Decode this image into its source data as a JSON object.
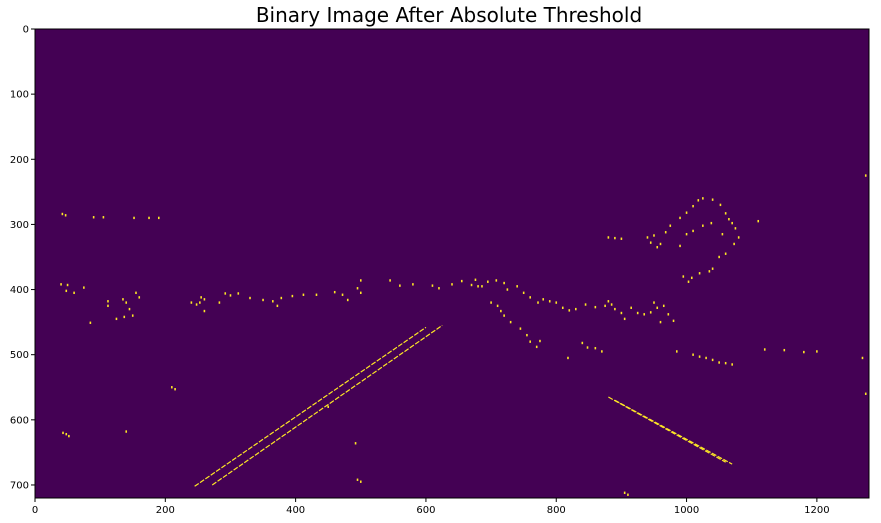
{
  "chart_data": {
    "type": "heatmap",
    "title": "Binary Image After Absolute Threshold",
    "xlabel": "",
    "ylabel": "",
    "xlim": [
      0,
      1280
    ],
    "ylim": [
      720,
      0
    ],
    "x_ticks": [
      0,
      200,
      400,
      600,
      800,
      1000,
      1200
    ],
    "y_ticks": [
      0,
      100,
      200,
      300,
      400,
      500,
      600,
      700
    ],
    "colors": {
      "background": "#440154",
      "foreground": "#fde725"
    },
    "lines": [
      {
        "x1": 245,
        "y1": 702,
        "x2": 600,
        "y2": 458
      },
      {
        "x1": 272,
        "y1": 700,
        "x2": 625,
        "y2": 455
      },
      {
        "x1": 880,
        "y1": 565,
        "x2": 1060,
        "y2": 665
      },
      {
        "x1": 890,
        "y1": 570,
        "x2": 1070,
        "y2": 668
      }
    ],
    "speckles": [
      [
        42,
        284
      ],
      [
        47,
        286
      ],
      [
        90,
        289
      ],
      [
        105,
        289
      ],
      [
        152,
        290
      ],
      [
        175,
        290
      ],
      [
        190,
        290
      ],
      [
        40,
        392
      ],
      [
        50,
        393
      ],
      [
        75,
        397
      ],
      [
        48,
        402
      ],
      [
        60,
        405
      ],
      [
        112,
        418
      ],
      [
        112,
        425
      ],
      [
        135,
        415
      ],
      [
        140,
        420
      ],
      [
        145,
        430
      ],
      [
        137,
        442
      ],
      [
        150,
        440
      ],
      [
        125,
        445
      ],
      [
        160,
        412
      ],
      [
        155,
        405
      ],
      [
        85,
        451
      ],
      [
        43,
        620
      ],
      [
        48,
        622
      ],
      [
        52,
        625
      ],
      [
        140,
        618
      ],
      [
        210,
        550
      ],
      [
        215,
        553
      ],
      [
        240,
        420
      ],
      [
        248,
        423
      ],
      [
        253,
        420
      ],
      [
        255,
        412
      ],
      [
        260,
        415
      ],
      [
        350,
        416
      ],
      [
        365,
        418
      ],
      [
        372,
        425
      ],
      [
        378,
        413
      ],
      [
        395,
        410
      ],
      [
        412,
        408
      ],
      [
        432,
        408
      ],
      [
        292,
        406
      ],
      [
        300,
        409
      ],
      [
        312,
        406
      ],
      [
        330,
        413
      ],
      [
        260,
        433
      ],
      [
        283,
        420
      ],
      [
        460,
        404
      ],
      [
        472,
        408
      ],
      [
        480,
        416
      ],
      [
        500,
        405
      ],
      [
        495,
        398
      ],
      [
        500,
        386
      ],
      [
        545,
        386
      ],
      [
        560,
        394
      ],
      [
        580,
        392
      ],
      [
        610,
        394
      ],
      [
        620,
        398
      ],
      [
        640,
        392
      ],
      [
        655,
        387
      ],
      [
        670,
        393
      ],
      [
        676,
        385
      ],
      [
        680,
        395
      ],
      [
        686,
        395
      ],
      [
        695,
        388
      ],
      [
        708,
        386
      ],
      [
        720,
        390
      ],
      [
        725,
        400
      ],
      [
        740,
        395
      ],
      [
        750,
        405
      ],
      [
        760,
        412
      ],
      [
        772,
        420
      ],
      [
        780,
        415
      ],
      [
        790,
        418
      ],
      [
        800,
        420
      ],
      [
        810,
        428
      ],
      [
        820,
        432
      ],
      [
        830,
        430
      ],
      [
        845,
        423
      ],
      [
        860,
        427
      ],
      [
        875,
        425
      ],
      [
        700,
        420
      ],
      [
        710,
        425
      ],
      [
        715,
        433
      ],
      [
        720,
        440
      ],
      [
        730,
        450
      ],
      [
        745,
        460
      ],
      [
        755,
        470
      ],
      [
        760,
        480
      ],
      [
        770,
        488
      ],
      [
        775,
        479
      ],
      [
        818,
        505
      ],
      [
        840,
        482
      ],
      [
        848,
        489
      ],
      [
        880,
        418
      ],
      [
        885,
        423
      ],
      [
        890,
        430
      ],
      [
        900,
        436
      ],
      [
        905,
        445
      ],
      [
        915,
        428
      ],
      [
        925,
        436
      ],
      [
        935,
        438
      ],
      [
        945,
        435
      ],
      [
        950,
        420
      ],
      [
        955,
        428
      ],
      [
        965,
        425
      ],
      [
        972,
        438
      ],
      [
        980,
        448
      ],
      [
        960,
        450
      ],
      [
        880,
        320
      ],
      [
        890,
        321
      ],
      [
        900,
        322
      ],
      [
        940,
        320
      ],
      [
        950,
        317
      ],
      [
        945,
        328
      ],
      [
        955,
        335
      ],
      [
        960,
        330
      ],
      [
        968,
        312
      ],
      [
        975,
        302
      ],
      [
        990,
        290
      ],
      [
        1000,
        282
      ],
      [
        1010,
        272
      ],
      [
        1018,
        263
      ],
      [
        1025,
        260
      ],
      [
        1040,
        262
      ],
      [
        1052,
        270
      ],
      [
        1060,
        283
      ],
      [
        1065,
        292
      ],
      [
        1070,
        298
      ],
      [
        1075,
        306
      ],
      [
        1080,
        320
      ],
      [
        1073,
        330
      ],
      [
        1055,
        315
      ],
      [
        1038,
        298
      ],
      [
        1025,
        302
      ],
      [
        1010,
        310
      ],
      [
        1000,
        315
      ],
      [
        990,
        333
      ],
      [
        1110,
        295
      ],
      [
        995,
        380
      ],
      [
        1003,
        388
      ],
      [
        1008,
        382
      ],
      [
        1020,
        375
      ],
      [
        1035,
        372
      ],
      [
        1040,
        368
      ],
      [
        1050,
        350
      ],
      [
        1060,
        345
      ],
      [
        985,
        495
      ],
      [
        1010,
        500
      ],
      [
        1020,
        503
      ],
      [
        1030,
        505
      ],
      [
        1040,
        508
      ],
      [
        1050,
        512
      ],
      [
        1060,
        513
      ],
      [
        1070,
        515
      ],
      [
        1120,
        492
      ],
      [
        1150,
        493
      ],
      [
        1180,
        496
      ],
      [
        1200,
        495
      ],
      [
        1270,
        505
      ],
      [
        1275,
        560
      ],
      [
        1275,
        225
      ],
      [
        492,
        636
      ],
      [
        495,
        692
      ],
      [
        500,
        695
      ],
      [
        450,
        580
      ],
      [
        905,
        712
      ],
      [
        910,
        715
      ],
      [
        860,
        490
      ],
      [
        870,
        495
      ]
    ]
  }
}
